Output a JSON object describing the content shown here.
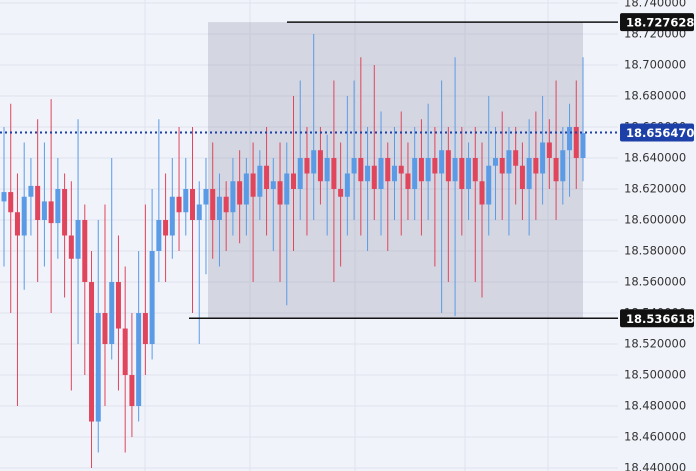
{
  "chart_data": {
    "type": "candlestick",
    "up_color": "#5b9be6",
    "down_color": "#e0455c",
    "grid": true,
    "ylim": [
      18.4381,
      18.7419
    ],
    "yticks": [
      {
        "value": 18.74,
        "label": "18.740000"
      },
      {
        "value": 18.72,
        "label": "18.720000"
      },
      {
        "value": 18.7,
        "label": "18.700000"
      },
      {
        "value": 18.68,
        "label": "18.680000"
      },
      {
        "value": 18.66,
        "label": "18.660000"
      },
      {
        "value": 18.64,
        "label": "18.640000"
      },
      {
        "value": 18.62,
        "label": "18.620000"
      },
      {
        "value": 18.6,
        "label": "18.600000"
      },
      {
        "value": 18.58,
        "label": "18.580000"
      },
      {
        "value": 18.56,
        "label": "18.560000"
      },
      {
        "value": 18.54,
        "label": "18.540000"
      },
      {
        "value": 18.52,
        "label": "18.520000"
      },
      {
        "value": 18.5,
        "label": "18.500000"
      },
      {
        "value": 18.48,
        "label": "18.480000"
      },
      {
        "value": 18.46,
        "label": "18.460000"
      },
      {
        "value": 18.44,
        "label": "18.440000"
      }
    ],
    "price_lines": [
      {
        "value": 18.727628,
        "label": "18.727628",
        "color": "#111111"
      },
      {
        "value": 18.536618,
        "label": "18.536618",
        "color": "#111111"
      },
      {
        "value": 18.65647,
        "label": "18.656470",
        "color": "#1c3fa8",
        "dotted": true
      }
    ],
    "open": [
      18.612,
      18.618,
      18.605,
      18.59,
      18.615,
      18.622,
      18.6,
      18.612,
      18.598,
      18.62,
      18.59,
      18.575,
      18.6,
      18.56,
      18.47,
      18.54,
      18.52,
      18.56,
      18.53,
      18.5,
      18.48,
      18.54,
      18.52,
      18.58,
      18.6,
      18.59,
      18.615,
      18.605,
      18.62,
      18.6,
      18.61,
      18.62,
      18.6,
      18.615,
      18.605,
      18.625,
      18.61,
      18.63,
      18.615,
      18.635,
      18.62,
      18.625,
      18.61,
      18.63,
      18.62,
      18.64,
      18.63,
      18.645,
      18.625,
      18.64,
      18.62,
      18.615,
      18.63,
      18.64,
      18.625,
      18.635,
      18.62,
      18.64,
      18.625,
      18.635,
      18.63,
      18.62,
      18.64,
      18.625,
      18.64,
      18.63,
      18.645,
      18.625,
      18.64,
      18.62,
      18.64,
      18.625,
      18.61,
      18.635,
      18.64,
      18.63,
      18.645,
      18.635,
      18.62,
      18.64,
      18.63,
      18.65,
      18.64,
      18.625,
      18.645,
      18.66,
      18.64
    ],
    "high": [
      18.66,
      18.675,
      18.63,
      18.65,
      18.64,
      18.665,
      18.65,
      18.678,
      18.64,
      18.63,
      18.625,
      18.665,
      18.61,
      18.58,
      18.6,
      18.61,
      18.64,
      18.59,
      18.57,
      18.54,
      18.58,
      18.61,
      18.62,
      18.665,
      18.63,
      18.64,
      18.66,
      18.64,
      18.66,
      18.625,
      18.64,
      18.65,
      18.63,
      18.625,
      18.64,
      18.645,
      18.64,
      18.65,
      18.645,
      18.66,
      18.64,
      18.65,
      18.65,
      18.68,
      18.69,
      18.66,
      18.72,
      18.66,
      18.655,
      18.69,
      18.65,
      18.68,
      18.69,
      18.705,
      18.66,
      18.7,
      18.67,
      18.65,
      18.66,
      18.67,
      18.65,
      18.66,
      18.665,
      18.675,
      18.66,
      18.69,
      18.66,
      18.705,
      18.66,
      18.65,
      18.66,
      18.65,
      18.68,
      18.66,
      18.67,
      18.66,
      18.66,
      18.65,
      18.665,
      18.67,
      18.68,
      18.665,
      18.69,
      18.66,
      18.675,
      18.69,
      18.705
    ],
    "low": [
      18.57,
      18.54,
      18.48,
      18.555,
      18.59,
      18.56,
      18.57,
      18.54,
      18.575,
      18.55,
      18.49,
      18.52,
      18.5,
      18.44,
      18.45,
      18.48,
      18.51,
      18.49,
      18.45,
      18.46,
      18.47,
      18.5,
      18.51,
      18.56,
      18.56,
      18.575,
      18.58,
      18.59,
      18.54,
      18.52,
      18.565,
      18.575,
      18.57,
      18.58,
      18.59,
      18.585,
      18.59,
      18.56,
      18.6,
      18.59,
      18.58,
      18.56,
      18.545,
      18.58,
      18.6,
      18.59,
      18.6,
      18.61,
      18.59,
      18.56,
      18.57,
      18.59,
      18.6,
      18.59,
      18.58,
      18.6,
      18.59,
      18.58,
      18.6,
      18.59,
      18.6,
      18.6,
      18.59,
      18.6,
      18.57,
      18.54,
      18.56,
      18.538,
      18.59,
      18.6,
      18.56,
      18.55,
      18.59,
      18.6,
      18.6,
      18.59,
      18.61,
      18.6,
      18.59,
      18.6,
      18.61,
      18.62,
      18.6,
      18.61,
      18.615,
      18.62,
      18.625
    ],
    "close": [
      18.618,
      18.605,
      18.59,
      18.615,
      18.622,
      18.6,
      18.612,
      18.598,
      18.62,
      18.59,
      18.575,
      18.6,
      18.56,
      18.47,
      18.54,
      18.52,
      18.56,
      18.53,
      18.5,
      18.48,
      18.54,
      18.52,
      18.58,
      18.6,
      18.59,
      18.615,
      18.605,
      18.62,
      18.6,
      18.61,
      18.62,
      18.6,
      18.615,
      18.605,
      18.625,
      18.61,
      18.63,
      18.615,
      18.635,
      18.62,
      18.625,
      18.61,
      18.63,
      18.62,
      18.64,
      18.63,
      18.645,
      18.625,
      18.64,
      18.62,
      18.615,
      18.63,
      18.64,
      18.625,
      18.635,
      18.62,
      18.64,
      18.625,
      18.635,
      18.63,
      18.62,
      18.64,
      18.625,
      18.64,
      18.63,
      18.645,
      18.625,
      18.64,
      18.62,
      18.64,
      18.625,
      18.61,
      18.635,
      18.64,
      18.63,
      18.645,
      18.635,
      18.62,
      18.64,
      18.63,
      18.65,
      18.64,
      18.625,
      18.645,
      18.66,
      18.64,
      18.656
    ]
  }
}
